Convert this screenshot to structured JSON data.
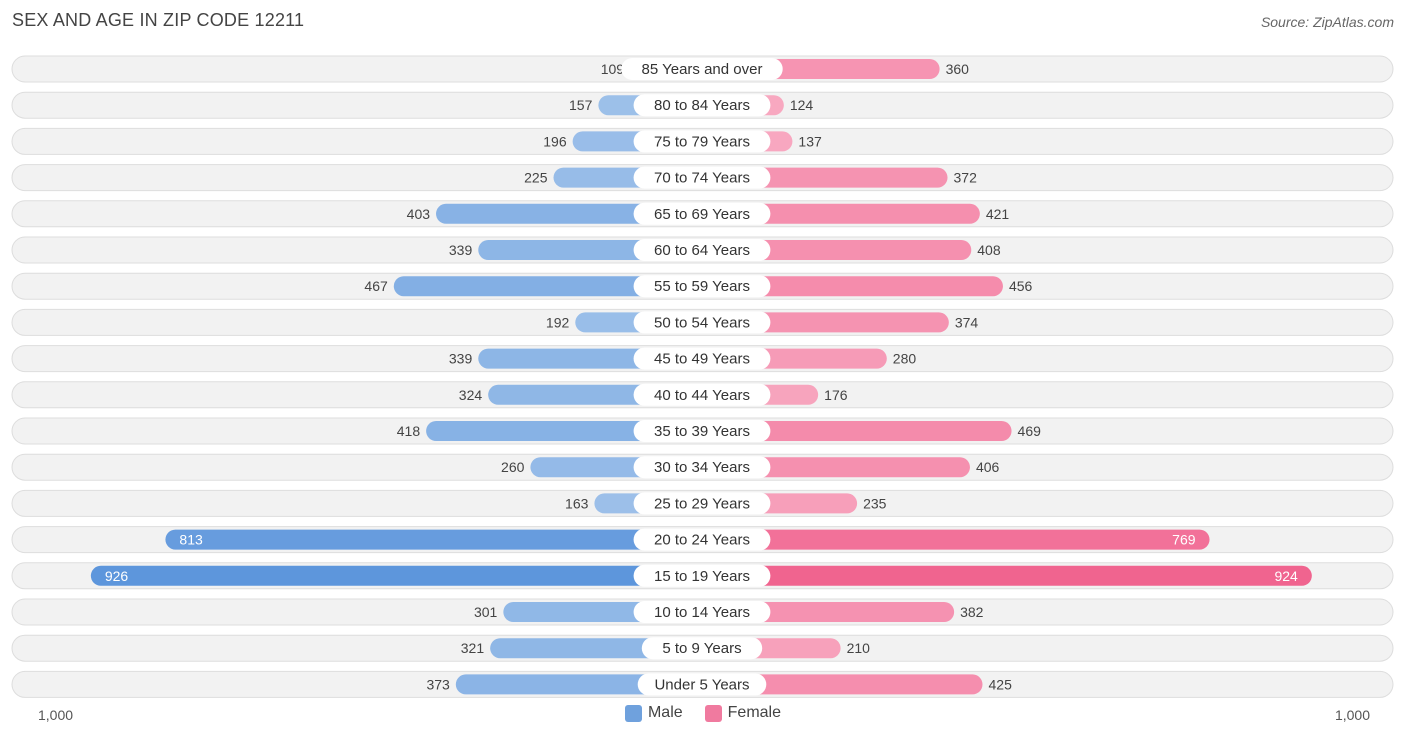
{
  "title": "SEX AND AGE IN ZIP CODE 12211",
  "source": "Source: ZipAtlas.com",
  "axis": {
    "left_label": "1,000",
    "right_label": "1,000"
  },
  "legend": [
    {
      "label": "Male",
      "color": "#6fa1dd"
    },
    {
      "label": "Female",
      "color": "#f07a9f"
    }
  ],
  "chart_data": {
    "type": "bar",
    "orientation": "horizontal-butterfly",
    "title": "SEX AND AGE IN ZIP CODE 12211",
    "categories": [
      "85 Years and over",
      "80 to 84 Years",
      "75 to 79 Years",
      "70 to 74 Years",
      "65 to 69 Years",
      "60 to 64 Years",
      "55 to 59 Years",
      "50 to 54 Years",
      "45 to 49 Years",
      "40 to 44 Years",
      "35 to 39 Years",
      "30 to 34 Years",
      "25 to 29 Years",
      "20 to 24 Years",
      "15 to 19 Years",
      "10 to 14 Years",
      "5 to 9 Years",
      "Under 5 Years"
    ],
    "series": [
      {
        "name": "Male",
        "color": "#6fa1dd",
        "values": [
          109,
          157,
          196,
          225,
          403,
          339,
          467,
          192,
          339,
          324,
          418,
          260,
          163,
          813,
          926,
          301,
          321,
          373
        ]
      },
      {
        "name": "Female",
        "color": "#f07a9f",
        "values": [
          360,
          124,
          137,
          372,
          421,
          408,
          456,
          374,
          280,
          176,
          469,
          406,
          235,
          769,
          924,
          382,
          210,
          425
        ]
      }
    ],
    "xlim": [
      -1000,
      1000
    ],
    "legend_position": "bottom-center",
    "grid": false
  }
}
